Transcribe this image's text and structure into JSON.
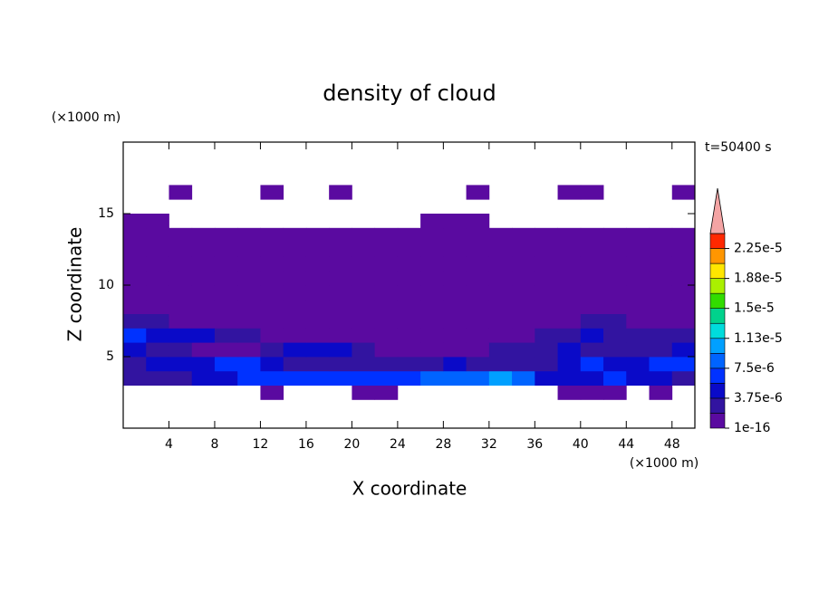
{
  "chart_data": {
    "type": "contour",
    "title": "density of cloud",
    "xlabel": "X coordinate",
    "ylabel": "Z coordinate",
    "xunit": "(×1000 m)",
    "yunit": "(×1000 m)",
    "annotation": "t=50400 s",
    "xlim": [
      0,
      50
    ],
    "ylim": [
      0,
      20
    ],
    "xticks": [
      4,
      8,
      12,
      16,
      20,
      24,
      28,
      32,
      36,
      40,
      44,
      48
    ],
    "yticks": [
      5,
      10,
      15
    ],
    "x_bins": [
      0,
      2,
      4,
      6,
      8,
      10,
      12,
      14,
      16,
      18,
      20,
      22,
      24,
      26,
      28,
      30,
      32,
      34,
      36,
      38,
      40,
      42,
      44,
      46,
      48,
      50
    ],
    "z_bins": [
      0,
      1,
      2,
      3,
      4,
      5,
      6,
      7,
      8,
      9,
      10,
      11,
      12,
      13,
      14,
      15,
      16,
      17,
      18,
      19,
      20
    ],
    "values": [
      [
        0,
        0,
        0,
        0,
        0,
        0,
        0,
        0,
        0,
        0,
        0,
        0,
        0,
        0,
        0,
        0,
        0,
        0,
        0,
        0,
        0,
        0,
        0,
        0,
        0
      ],
      [
        0,
        0,
        0,
        0,
        0,
        0,
        0,
        0,
        0,
        0,
        0,
        0,
        0,
        0,
        0,
        0,
        0,
        0,
        0,
        0,
        0,
        0,
        0,
        0,
        0
      ],
      [
        0,
        0,
        0,
        0,
        0,
        0,
        1e-16,
        0,
        0,
        0,
        1e-16,
        1e-16,
        0,
        0,
        0,
        0,
        0,
        0,
        0,
        1e-16,
        1e-16,
        1e-16,
        0,
        1e-16,
        0
      ],
      [
        2e-06,
        2e-06,
        3e-06,
        4e-06,
        4e-06,
        6e-06,
        7e-06,
        6e-06,
        6e-06,
        7e-06,
        7e-06,
        6e-06,
        6e-06,
        8e-06,
        8e-06,
        9e-06,
        1.1e-05,
        8e-06,
        5e-06,
        4e-06,
        5e-06,
        6e-06,
        5e-06,
        4e-06,
        3e-06
      ],
      [
        3e-06,
        4e-06,
        5e-06,
        4e-06,
        6e-06,
        7e-06,
        5e-06,
        3e-06,
        2e-06,
        2e-06,
        3e-06,
        2e-06,
        2e-06,
        3e-06,
        4e-06,
        3e-06,
        3e-06,
        2e-06,
        3e-06,
        5e-06,
        6e-06,
        5e-06,
        4e-06,
        6e-06,
        7e-06
      ],
      [
        5e-06,
        3e-06,
        2e-06,
        1e-06,
        1e-06,
        1e-06,
        2e-06,
        4e-06,
        5e-06,
        4e-06,
        2e-06,
        1e-06,
        1e-06,
        1e-06,
        1e-06,
        1e-06,
        2e-06,
        2e-06,
        3e-06,
        4e-06,
        3e-06,
        2e-06,
        2e-06,
        3e-06,
        4e-06
      ],
      [
        6e-06,
        5e-06,
        4e-06,
        5e-06,
        3e-06,
        2e-06,
        1e-06,
        1e-16,
        1e-16,
        1e-16,
        1e-16,
        1e-16,
        1e-16,
        1e-16,
        1e-16,
        1e-16,
        1e-16,
        1e-06,
        2e-06,
        3e-06,
        4e-06,
        3e-06,
        2e-06,
        2e-06,
        3e-06
      ],
      [
        2e-06,
        2e-06,
        1e-06,
        1e-06,
        1e-06,
        1e-06,
        1e-16,
        1e-16,
        1e-06,
        1e-06,
        1e-16,
        1e-16,
        1e-16,
        1e-16,
        1e-16,
        1e-16,
        1e-16,
        1e-16,
        1e-06,
        1e-06,
        2e-06,
        2e-06,
        1e-06,
        1e-06,
        1e-06
      ],
      [
        1e-06,
        1e-06,
        1e-16,
        1e-16,
        1e-06,
        1e-06,
        1e-06,
        1e-06,
        1e-06,
        1e-16,
        1e-16,
        1e-16,
        1e-16,
        1e-16,
        1e-16,
        1e-06,
        1e-06,
        1e-16,
        1e-16,
        1e-16,
        1e-16,
        1e-06,
        1e-06,
        1e-06,
        1e-06
      ],
      [
        1e-16,
        1e-16,
        1e-16,
        1e-16,
        1e-16,
        1e-16,
        1e-16,
        1e-16,
        1e-16,
        1e-16,
        1e-16,
        1e-16,
        1e-16,
        1e-16,
        1e-16,
        1e-16,
        1e-16,
        1e-16,
        1e-16,
        1e-16,
        1e-16,
        1e-16,
        1e-16,
        1e-16,
        1e-16
      ],
      [
        1e-16,
        1e-16,
        1e-16,
        1e-16,
        1e-16,
        1e-16,
        1e-16,
        1e-16,
        1e-16,
        1e-16,
        1e-16,
        1e-16,
        1e-16,
        1e-16,
        1e-06,
        1e-06,
        1e-06,
        1e-16,
        1e-16,
        1e-16,
        1e-16,
        1e-16,
        1e-16,
        1e-16,
        1e-16
      ],
      [
        1e-16,
        1e-16,
        1e-16,
        1e-16,
        1e-16,
        1e-16,
        1e-16,
        1e-16,
        1e-16,
        1e-16,
        1e-16,
        1e-16,
        1e-16,
        1e-16,
        1e-16,
        1e-16,
        1e-16,
        1e-16,
        1e-16,
        1e-16,
        1e-16,
        1e-16,
        1e-16,
        1e-16,
        1e-16
      ],
      [
        1e-16,
        1e-16,
        1e-16,
        1e-16,
        1e-16,
        1e-16,
        1e-16,
        1e-16,
        1e-16,
        1e-16,
        1e-16,
        1e-16,
        1e-16,
        1e-16,
        1e-16,
        1e-16,
        1e-16,
        1e-16,
        1e-16,
        1e-16,
        1e-16,
        1e-16,
        1e-16,
        1e-16,
        1e-16
      ],
      [
        1e-16,
        1e-16,
        1e-16,
        1e-16,
        1e-16,
        1e-16,
        1e-16,
        1e-16,
        1e-16,
        1e-16,
        1e-16,
        1e-16,
        1e-16,
        1e-16,
        1e-16,
        1e-16,
        1e-16,
        1e-16,
        1e-16,
        1e-16,
        1e-16,
        1e-16,
        1e-16,
        1e-16,
        1e-16
      ],
      [
        1e-16,
        1e-16,
        0,
        0,
        0,
        0,
        0,
        0,
        0,
        0,
        0,
        0,
        0,
        1e-16,
        1e-16,
        1e-16,
        0,
        0,
        0,
        0,
        0,
        0,
        0,
        0,
        0
      ],
      [
        0,
        0,
        0,
        0,
        0,
        0,
        0,
        0,
        0,
        0,
        0,
        0,
        0,
        0,
        0,
        0,
        0,
        0,
        0,
        0,
        0,
        0,
        0,
        0,
        0
      ],
      [
        0,
        0,
        1e-16,
        0,
        0,
        0,
        1e-16,
        0,
        0,
        1e-16,
        0,
        0,
        0,
        0,
        0,
        1e-16,
        0,
        0,
        0,
        1e-16,
        1e-16,
        0,
        0,
        0,
        1e-16
      ],
      [
        0,
        0,
        0,
        0,
        0,
        0,
        0,
        0,
        0,
        0,
        0,
        0,
        0,
        0,
        0,
        0,
        0,
        0,
        0,
        0,
        0,
        0,
        0,
        0,
        0
      ],
      [
        0,
        0,
        0,
        0,
        0,
        0,
        0,
        0,
        0,
        0,
        0,
        0,
        0,
        0,
        0,
        0,
        0,
        0,
        0,
        0,
        0,
        0,
        0,
        0,
        0
      ],
      [
        0,
        0,
        0,
        0,
        0,
        0,
        0,
        0,
        0,
        0,
        0,
        0,
        0,
        0,
        0,
        0,
        0,
        0,
        0,
        0,
        0,
        0,
        0,
        0,
        0
      ]
    ],
    "colorbar": {
      "levels": [
        1e-16,
        1.875e-06,
        3.75e-06,
        5.625e-06,
        7.5e-06,
        9.375e-06,
        1.125e-05,
        1.3125e-05,
        1.5e-05,
        1.6875e-05,
        1.875e-05,
        2.0625e-05,
        2.25e-05,
        2.4375e-05
      ],
      "colors": [
        "#5a0aa0",
        "#3214a0",
        "#0a0ac8",
        "#0032ff",
        "#0064ff",
        "#00a0ff",
        "#00dcdc",
        "#00d28c",
        "#32dc00",
        "#aaf000",
        "#ffe600",
        "#ff9600",
        "#ff2800"
      ],
      "extend_color": "#f4a4a4",
      "ticks": [
        1e-16,
        {
          "value": 3.75e-06,
          "label": "3.75e-6"
        },
        {
          "value": 7.5e-06,
          "label": "7.5e-6"
        },
        {
          "value": 1.125e-05,
          "label": "1.13e-5"
        },
        {
          "value": 1.5e-05,
          "label": "1.5e-5"
        },
        {
          "value": 1.875e-05,
          "label": "1.88e-5"
        },
        {
          "value": 2.25e-05,
          "label": "2.25e-5"
        }
      ]
    }
  }
}
